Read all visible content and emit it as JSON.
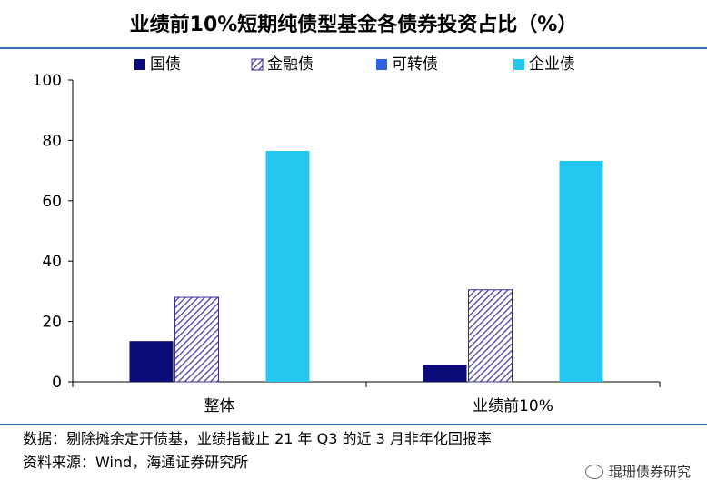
{
  "title": "业绩前10%短期纯债型基金各债券投资占比（%）",
  "chart_data": {
    "type": "bar",
    "categories": [
      "整体",
      "业绩前10%"
    ],
    "series": [
      {
        "name": "国债",
        "values": [
          13.5,
          5.7
        ],
        "color": "#0a0a78",
        "pattern": "solid"
      },
      {
        "name": "金融债",
        "values": [
          28,
          30.5
        ],
        "color": "#5a50b0",
        "pattern": "diagonal-hatch"
      },
      {
        "name": "可转债",
        "values": [
          0,
          0
        ],
        "color": "#3060e8",
        "pattern": "solid"
      },
      {
        "name": "企业债",
        "values": [
          76.5,
          73.2
        ],
        "color": "#22c8f0",
        "pattern": "solid"
      }
    ],
    "ylim": [
      0,
      100
    ],
    "yticks": [
      "0",
      "20",
      "40",
      "60",
      "80",
      "100"
    ],
    "xlabel": "",
    "ylabel": "",
    "legend_position": "top",
    "grid": false
  },
  "notes": {
    "line1": "数据：剔除摊余定开债基，业绩指截止 21 年 Q3 的近 3 月非年化回报率",
    "line2": "资料来源：Wind，海通证券研究所"
  },
  "watermark": "琨珊债券研究"
}
